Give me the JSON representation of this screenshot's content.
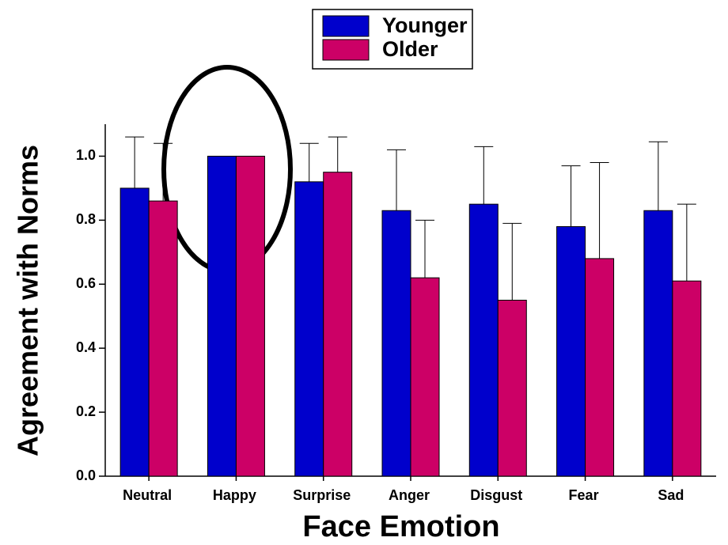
{
  "chart_data": {
    "type": "bar",
    "categories": [
      "Neutral",
      "Happy",
      "Surprise",
      "Anger",
      "Disgust",
      "Fear",
      "Sad"
    ],
    "series": [
      {
        "name": "Younger",
        "color": "#0000cc",
        "values": [
          0.9,
          1.0,
          0.92,
          0.83,
          0.85,
          0.78,
          0.83
        ],
        "errors": [
          0.16,
          null,
          0.12,
          0.19,
          0.18,
          0.19,
          0.215
        ]
      },
      {
        "name": "Older",
        "color": "#cc0066",
        "values": [
          0.86,
          1.0,
          0.95,
          0.62,
          0.55,
          0.68,
          0.61
        ],
        "errors": [
          0.18,
          null,
          0.11,
          0.18,
          0.24,
          0.3,
          0.24
        ]
      }
    ],
    "x_label": "Face Emotion",
    "y_label": "Agreement with Norms",
    "ylim": [
      0,
      1.1
    ],
    "yticks": [
      {
        "value": 0,
        "label": "0.0"
      },
      0.2,
      0.4,
      0.6,
      0.8,
      {
        "value": 1,
        "label": "1.0"
      }
    ],
    "legend": "top",
    "grid": false
  }
}
